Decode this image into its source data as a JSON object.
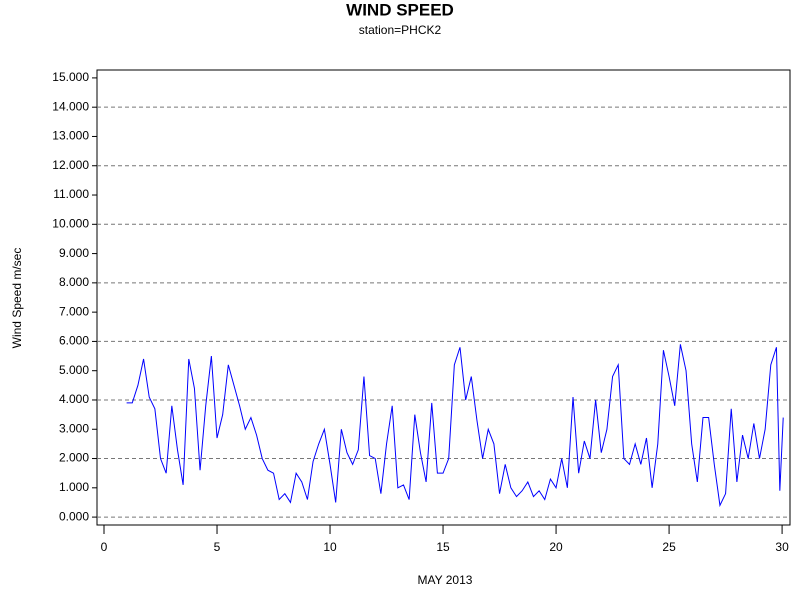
{
  "chart_data": {
    "type": "line",
    "title": "WIND SPEED",
    "subtitle": "station=PHCK2",
    "x_label": "MAY 2013",
    "y_label": "Wind Speed m/sec",
    "x": [
      1.0,
      1.25,
      1.5,
      1.75,
      2.0,
      2.25,
      2.5,
      2.75,
      3.0,
      3.25,
      3.5,
      3.75,
      4.0,
      4.25,
      4.5,
      4.75,
      5.0,
      5.25,
      5.5,
      5.75,
      6.0,
      6.25,
      6.5,
      6.75,
      7.0,
      7.25,
      7.5,
      7.75,
      8.0,
      8.25,
      8.5,
      8.75,
      9.0,
      9.25,
      9.5,
      9.75,
      10.0,
      10.25,
      10.5,
      10.75,
      11.0,
      11.25,
      11.5,
      11.75,
      12.0,
      12.25,
      12.5,
      12.75,
      13.0,
      13.25,
      13.5,
      13.75,
      14.0,
      14.25,
      14.5,
      14.75,
      15.0,
      15.25,
      15.5,
      15.75,
      16.0,
      16.25,
      16.5,
      16.75,
      17.0,
      17.25,
      17.5,
      17.75,
      18.0,
      18.25,
      18.5,
      18.75,
      19.0,
      19.25,
      19.5,
      19.75,
      20.0,
      20.25,
      20.5,
      20.75,
      21.0,
      21.25,
      21.5,
      21.75,
      22.0,
      22.25,
      22.5,
      22.75,
      23.0,
      23.25,
      23.5,
      23.75,
      24.0,
      24.25,
      24.5,
      24.75,
      25.0,
      25.25,
      25.5,
      25.75,
      26.0,
      26.25,
      26.5,
      26.75,
      27.0,
      27.25,
      27.5,
      27.75,
      28.0,
      28.25,
      28.5,
      28.75,
      29.0,
      29.25,
      29.5,
      29.75,
      29.9,
      30.05
    ],
    "series": [
      {
        "name": "Wind Speed",
        "color": "#0000ff",
        "values": [
          3.9,
          3.9,
          4.5,
          5.4,
          4.1,
          3.7,
          2.0,
          1.5,
          3.8,
          2.3,
          1.1,
          5.4,
          4.4,
          1.6,
          3.8,
          5.5,
          2.7,
          3.5,
          5.2,
          4.5,
          3.8,
          3.0,
          3.4,
          2.8,
          2.0,
          1.6,
          1.5,
          0.6,
          0.8,
          0.5,
          1.5,
          1.2,
          0.6,
          1.9,
          2.5,
          3.0,
          1.8,
          0.5,
          3.0,
          2.2,
          1.8,
          2.3,
          4.8,
          2.1,
          2.0,
          0.8,
          2.5,
          3.8,
          1.0,
          1.1,
          0.6,
          3.5,
          2.2,
          1.2,
          3.9,
          1.5,
          1.5,
          2.0,
          5.2,
          5.8,
          4.0,
          4.8,
          3.3,
          2.0,
          3.0,
          2.5,
          0.8,
          1.8,
          1.0,
          0.7,
          0.9,
          1.2,
          0.7,
          0.9,
          0.6,
          1.3,
          1.0,
          2.0,
          1.0,
          4.1,
          1.5,
          2.6,
          2.0,
          4.0,
          2.2,
          3.0,
          4.8,
          5.2,
          2.0,
          1.8,
          2.5,
          1.8,
          2.7,
          1.0,
          2.5,
          5.7,
          4.8,
          3.8,
          5.9,
          5.0,
          2.5,
          1.2,
          3.4,
          3.4,
          1.8,
          0.4,
          0.8,
          3.7,
          1.2,
          2.8,
          2.0,
          3.2,
          2.0,
          3.0,
          5.2,
          5.8,
          0.9,
          3.4
        ]
      }
    ],
    "xlim": [
      -0.31,
      30.35
    ],
    "xticks": [
      0,
      5,
      10,
      15,
      20,
      25,
      30
    ],
    "ylim": [
      -0.27,
      15.27
    ],
    "yticks": [
      {
        "value": 0,
        "label": "0.000"
      },
      {
        "value": 1,
        "label": "1.000"
      },
      {
        "value": 2,
        "label": "2.000"
      },
      {
        "value": 3,
        "label": "3.000"
      },
      {
        "value": 4,
        "label": "4.000"
      },
      {
        "value": 5,
        "label": "5.000"
      },
      {
        "value": 6,
        "label": "6.000"
      },
      {
        "value": 7,
        "label": "7.000"
      },
      {
        "value": 8,
        "label": "8.000"
      },
      {
        "value": 9,
        "label": "9.000"
      },
      {
        "value": 10,
        "label": "10.000"
      },
      {
        "value": 11,
        "label": "11.000"
      },
      {
        "value": 12,
        "label": "12.000"
      },
      {
        "value": 13,
        "label": "13.000"
      },
      {
        "value": 14,
        "label": "14.000"
      },
      {
        "value": 15,
        "label": "15.000"
      }
    ],
    "grid": true
  }
}
